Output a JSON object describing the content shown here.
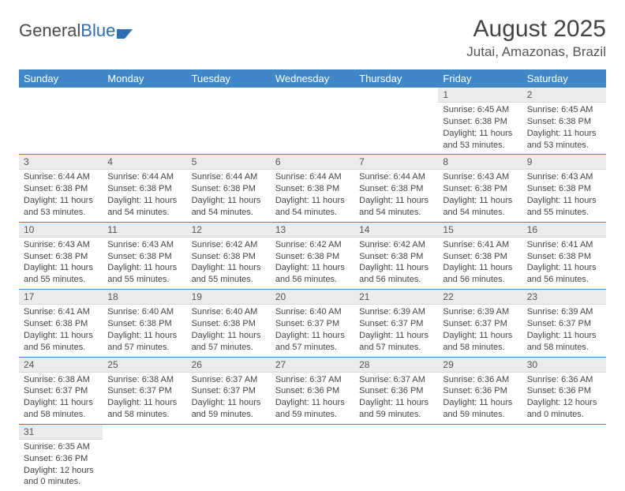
{
  "logo": {
    "word1": "General",
    "word2": "Blue"
  },
  "title": "August 2025",
  "location": "Jutai, Amazonas, Brazil",
  "colors": {
    "header_bg": "#3f87c7",
    "header_text": "#ffffff",
    "daynum_bg": "#ebebeb",
    "border": "#3f87c7",
    "text": "#444444"
  },
  "typography": {
    "title_fontsize": 30,
    "location_fontsize": 17,
    "dayhead_fontsize": 13,
    "daynum_fontsize": 12,
    "detail_fontsize": 11
  },
  "day_headers": [
    "Sunday",
    "Monday",
    "Tuesday",
    "Wednesday",
    "Thursday",
    "Friday",
    "Saturday"
  ],
  "weeks": [
    [
      null,
      null,
      null,
      null,
      null,
      {
        "n": "1",
        "sr": "Sunrise: 6:45 AM",
        "ss": "Sunset: 6:38 PM",
        "dl": "Daylight: 11 hours and 53 minutes."
      },
      {
        "n": "2",
        "sr": "Sunrise: 6:45 AM",
        "ss": "Sunset: 6:38 PM",
        "dl": "Daylight: 11 hours and 53 minutes."
      }
    ],
    [
      {
        "n": "3",
        "sr": "Sunrise: 6:44 AM",
        "ss": "Sunset: 6:38 PM",
        "dl": "Daylight: 11 hours and 53 minutes."
      },
      {
        "n": "4",
        "sr": "Sunrise: 6:44 AM",
        "ss": "Sunset: 6:38 PM",
        "dl": "Daylight: 11 hours and 54 minutes."
      },
      {
        "n": "5",
        "sr": "Sunrise: 6:44 AM",
        "ss": "Sunset: 6:38 PM",
        "dl": "Daylight: 11 hours and 54 minutes."
      },
      {
        "n": "6",
        "sr": "Sunrise: 6:44 AM",
        "ss": "Sunset: 6:38 PM",
        "dl": "Daylight: 11 hours and 54 minutes."
      },
      {
        "n": "7",
        "sr": "Sunrise: 6:44 AM",
        "ss": "Sunset: 6:38 PM",
        "dl": "Daylight: 11 hours and 54 minutes."
      },
      {
        "n": "8",
        "sr": "Sunrise: 6:43 AM",
        "ss": "Sunset: 6:38 PM",
        "dl": "Daylight: 11 hours and 54 minutes."
      },
      {
        "n": "9",
        "sr": "Sunrise: 6:43 AM",
        "ss": "Sunset: 6:38 PM",
        "dl": "Daylight: 11 hours and 55 minutes."
      }
    ],
    [
      {
        "n": "10",
        "sr": "Sunrise: 6:43 AM",
        "ss": "Sunset: 6:38 PM",
        "dl": "Daylight: 11 hours and 55 minutes."
      },
      {
        "n": "11",
        "sr": "Sunrise: 6:43 AM",
        "ss": "Sunset: 6:38 PM",
        "dl": "Daylight: 11 hours and 55 minutes."
      },
      {
        "n": "12",
        "sr": "Sunrise: 6:42 AM",
        "ss": "Sunset: 6:38 PM",
        "dl": "Daylight: 11 hours and 55 minutes."
      },
      {
        "n": "13",
        "sr": "Sunrise: 6:42 AM",
        "ss": "Sunset: 6:38 PM",
        "dl": "Daylight: 11 hours and 56 minutes."
      },
      {
        "n": "14",
        "sr": "Sunrise: 6:42 AM",
        "ss": "Sunset: 6:38 PM",
        "dl": "Daylight: 11 hours and 56 minutes."
      },
      {
        "n": "15",
        "sr": "Sunrise: 6:41 AM",
        "ss": "Sunset: 6:38 PM",
        "dl": "Daylight: 11 hours and 56 minutes."
      },
      {
        "n": "16",
        "sr": "Sunrise: 6:41 AM",
        "ss": "Sunset: 6:38 PM",
        "dl": "Daylight: 11 hours and 56 minutes."
      }
    ],
    [
      {
        "n": "17",
        "sr": "Sunrise: 6:41 AM",
        "ss": "Sunset: 6:38 PM",
        "dl": "Daylight: 11 hours and 56 minutes."
      },
      {
        "n": "18",
        "sr": "Sunrise: 6:40 AM",
        "ss": "Sunset: 6:38 PM",
        "dl": "Daylight: 11 hours and 57 minutes."
      },
      {
        "n": "19",
        "sr": "Sunrise: 6:40 AM",
        "ss": "Sunset: 6:38 PM",
        "dl": "Daylight: 11 hours and 57 minutes."
      },
      {
        "n": "20",
        "sr": "Sunrise: 6:40 AM",
        "ss": "Sunset: 6:37 PM",
        "dl": "Daylight: 11 hours and 57 minutes."
      },
      {
        "n": "21",
        "sr": "Sunrise: 6:39 AM",
        "ss": "Sunset: 6:37 PM",
        "dl": "Daylight: 11 hours and 57 minutes."
      },
      {
        "n": "22",
        "sr": "Sunrise: 6:39 AM",
        "ss": "Sunset: 6:37 PM",
        "dl": "Daylight: 11 hours and 58 minutes."
      },
      {
        "n": "23",
        "sr": "Sunrise: 6:39 AM",
        "ss": "Sunset: 6:37 PM",
        "dl": "Daylight: 11 hours and 58 minutes."
      }
    ],
    [
      {
        "n": "24",
        "sr": "Sunrise: 6:38 AM",
        "ss": "Sunset: 6:37 PM",
        "dl": "Daylight: 11 hours and 58 minutes."
      },
      {
        "n": "25",
        "sr": "Sunrise: 6:38 AM",
        "ss": "Sunset: 6:37 PM",
        "dl": "Daylight: 11 hours and 58 minutes."
      },
      {
        "n": "26",
        "sr": "Sunrise: 6:37 AM",
        "ss": "Sunset: 6:37 PM",
        "dl": "Daylight: 11 hours and 59 minutes."
      },
      {
        "n": "27",
        "sr": "Sunrise: 6:37 AM",
        "ss": "Sunset: 6:36 PM",
        "dl": "Daylight: 11 hours and 59 minutes."
      },
      {
        "n": "28",
        "sr": "Sunrise: 6:37 AM",
        "ss": "Sunset: 6:36 PM",
        "dl": "Daylight: 11 hours and 59 minutes."
      },
      {
        "n": "29",
        "sr": "Sunrise: 6:36 AM",
        "ss": "Sunset: 6:36 PM",
        "dl": "Daylight: 11 hours and 59 minutes."
      },
      {
        "n": "30",
        "sr": "Sunrise: 6:36 AM",
        "ss": "Sunset: 6:36 PM",
        "dl": "Daylight: 12 hours and 0 minutes."
      }
    ],
    [
      {
        "n": "31",
        "sr": "Sunrise: 6:35 AM",
        "ss": "Sunset: 6:36 PM",
        "dl": "Daylight: 12 hours and 0 minutes."
      },
      null,
      null,
      null,
      null,
      null,
      null
    ]
  ]
}
